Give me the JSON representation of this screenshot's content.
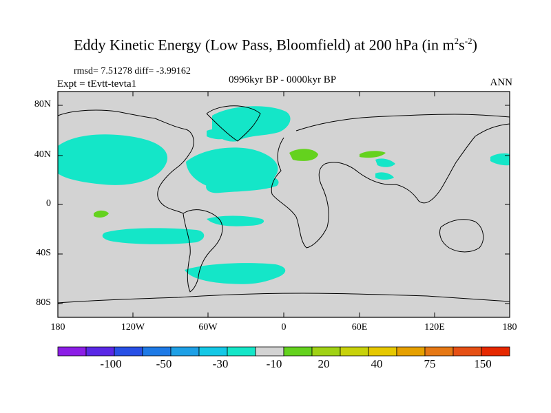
{
  "title": {
    "main": "Eddy Kinetic Energy (Low Pass, Bloomfield) at 200 hPa (in m",
    "sup1": "2",
    "mid": "s",
    "sup2": "-2",
    "end": ")"
  },
  "stats": "rmsd= 7.51278 diff= -3.99162",
  "experiment": "Expt = tEvtt-tevta1",
  "period": "0996kyr BP - 0000kyr BP",
  "season": "ANN",
  "map": {
    "lat_labels": [
      "80N",
      "40N",
      "0",
      "40S",
      "80S"
    ],
    "lon_labels": [
      "180",
      "120W",
      "60W",
      "0",
      "60E",
      "120E",
      "180"
    ],
    "land_color": "#d3d3d3"
  },
  "colorbar": {
    "colors": [
      "#8c1ee6",
      "#5a28e6",
      "#2850e6",
      "#1e7ae6",
      "#1ea0e6",
      "#14c8e6",
      "#14e6c8",
      "#d3d3d3",
      "#64d21e",
      "#a0d214",
      "#c8d20a",
      "#e6c800",
      "#e6a000",
      "#e67814",
      "#e65014",
      "#e62800"
    ],
    "labels": [
      "-100",
      "-50",
      "-30",
      "-10",
      "20",
      "40",
      "75",
      "150"
    ]
  }
}
